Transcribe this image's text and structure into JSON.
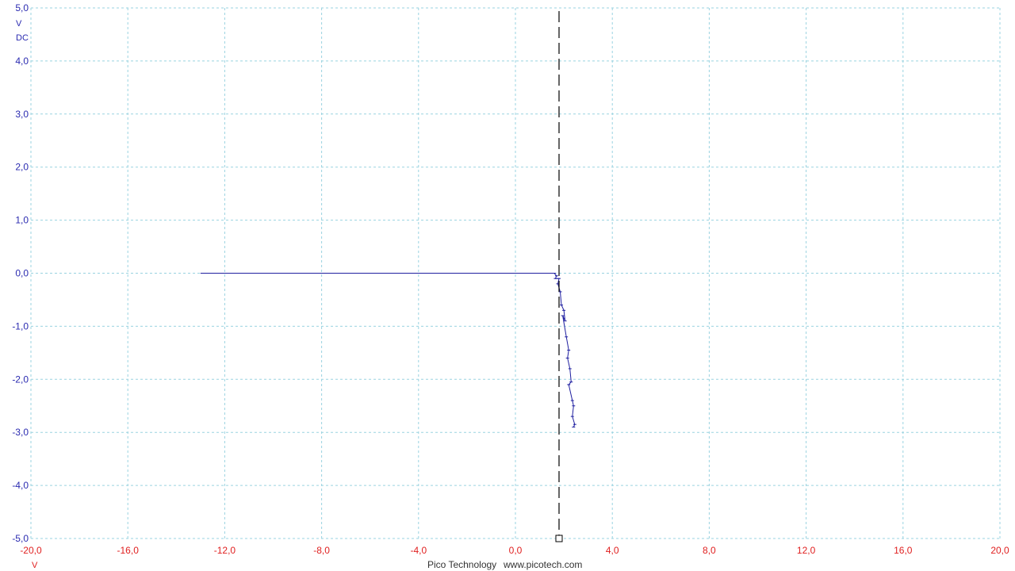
{
  "chart_data": {
    "type": "line",
    "y_unit": "V",
    "y_coupling": "DC",
    "x_unit": "V",
    "xlim": [
      -20,
      20
    ],
    "ylim": [
      -5,
      5
    ],
    "x_ticks": [
      "-20,0",
      "-16,0",
      "-12,0",
      "-8,0",
      "-4,0",
      "0,0",
      "4,0",
      "8,0",
      "12,0",
      "16,0",
      "20,0"
    ],
    "y_ticks": [
      "5,0",
      "4,0",
      "3,0",
      "2,0",
      "1,0",
      "0,0",
      "-1,0",
      "-2,0",
      "-3,0",
      "-4,0",
      "-5,0"
    ],
    "grid": true,
    "cursor_x": 1.8,
    "series": [
      {
        "color": "#1f1fa0",
        "x": [
          -13.0,
          1.6,
          1.7,
          1.65,
          1.8,
          1.75,
          1.85,
          1.9,
          2.0,
          2.05,
          1.95,
          2.1,
          2.2,
          2.15,
          2.25,
          2.3,
          2.2,
          2.35,
          2.4,
          2.35,
          2.45,
          2.4
        ],
        "y": [
          0.0,
          0.0,
          -0.05,
          -0.1,
          -0.1,
          -0.2,
          -0.35,
          -0.6,
          -0.7,
          -0.9,
          -0.8,
          -1.2,
          -1.45,
          -1.6,
          -1.8,
          -2.05,
          -2.1,
          -2.4,
          -2.5,
          -2.7,
          -2.85,
          -2.9
        ]
      }
    ]
  },
  "footer": {
    "brand": "Pico Technology",
    "website": "www.picotech.com"
  }
}
